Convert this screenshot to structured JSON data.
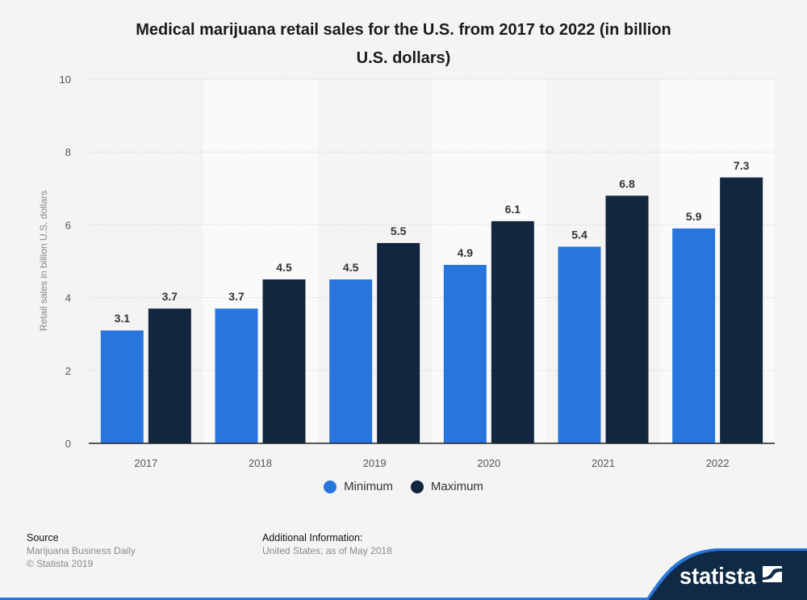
{
  "title_lines": [
    "Medical marijuana retail sales for the U.S. from 2017 to 2022 (in billion",
    "U.S. dollars)"
  ],
  "colors": {
    "minimum": "#2876dd",
    "maximum": "#12263f",
    "band_light": "#fafafa",
    "band_dark": "#f4f4f4",
    "brand_dark": "#0f2a44",
    "brand_accent": "#2876dd"
  },
  "chart_data": {
    "type": "bar",
    "title": "Medical marijuana retail sales for the U.S. from 2017 to 2022 (in billion U.S. dollars)",
    "xlabel": "",
    "ylabel": "Retail sales in billion U.S. dollars",
    "categories": [
      "2017",
      "2018",
      "2019",
      "2020",
      "2021",
      "2022"
    ],
    "series": [
      {
        "name": "Minimum",
        "values": [
          3.1,
          3.7,
          4.5,
          4.9,
          5.4,
          5.9
        ]
      },
      {
        "name": "Maximum",
        "values": [
          3.7,
          4.5,
          5.5,
          6.1,
          6.8,
          7.3
        ]
      }
    ],
    "ylim": [
      0,
      10
    ],
    "yticks": [
      0,
      2,
      4,
      6,
      8,
      10
    ],
    "grid": true,
    "legend": "bottom-center",
    "data_labels": true
  },
  "legend": [
    {
      "label": "Minimum"
    },
    {
      "label": "Maximum"
    }
  ],
  "footer": {
    "source_head": "Source",
    "source_lines": [
      "Marijuana Business Daily",
      "© Statista 2019"
    ],
    "info_head": "Additional Information:",
    "info_lines": [
      "United States; as of May 2018"
    ]
  },
  "brand": {
    "name": "statista"
  }
}
